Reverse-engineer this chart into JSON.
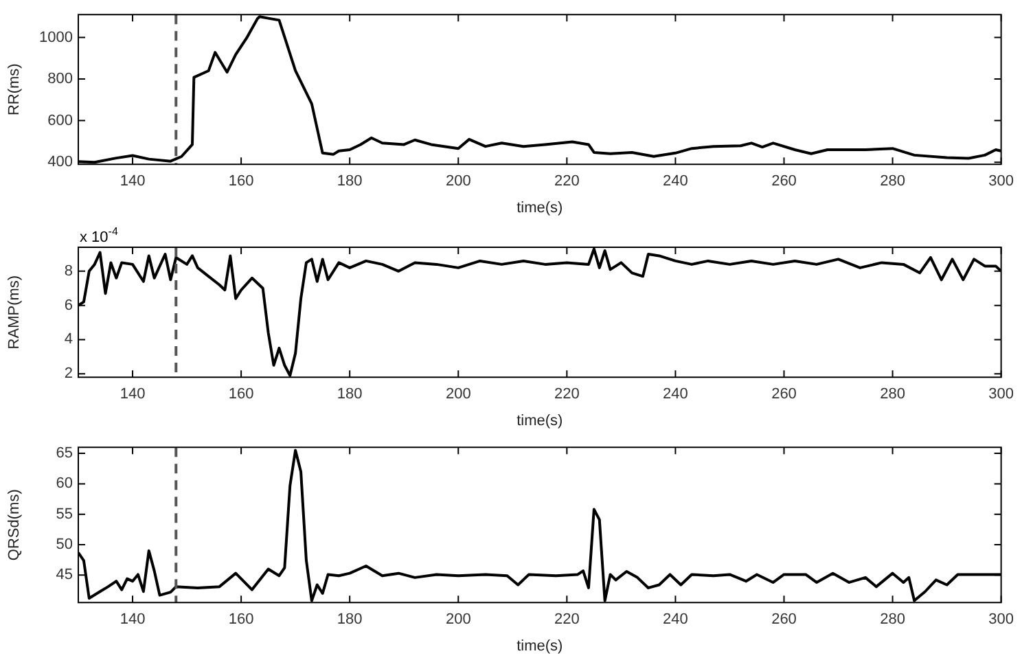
{
  "chart_data": [
    {
      "type": "line",
      "xlabel": "time(s)",
      "ylabel": "RR(ms)",
      "xlim": [
        130,
        300
      ],
      "ylim": [
        390,
        1110
      ],
      "xticks": [
        140,
        160,
        180,
        200,
        220,
        240,
        260,
        280,
        300
      ],
      "yticks": [
        400,
        600,
        800,
        1000
      ],
      "grid": false,
      "legend": false,
      "line_style": "solid",
      "marker": "none",
      "ref_lines": [
        {
          "axis": "x",
          "value": 148,
          "color": "#555555",
          "line_style": "dashed"
        }
      ],
      "series": [
        {
          "color": "#000000",
          "x": [
            130,
            133,
            137,
            140,
            143,
            147,
            149,
            151,
            151.3,
            154,
            155.2,
            157.4,
            159,
            161,
            163,
            163.4,
            165,
            167,
            170,
            173,
            175,
            177,
            178,
            180,
            182,
            184,
            186,
            190,
            192,
            195,
            200,
            202,
            205,
            208,
            212,
            216,
            221,
            224,
            225,
            228,
            232,
            236,
            240,
            243,
            247,
            252,
            254,
            256,
            258,
            262,
            265,
            268,
            275,
            280,
            284,
            290,
            294,
            297,
            299,
            300
          ],
          "values": [
            403,
            400,
            420,
            432,
            415,
            405,
            427,
            485,
            808,
            840,
            928,
            833,
            918,
            997,
            1090,
            1100,
            1092,
            1083,
            840,
            681,
            444,
            438,
            454,
            460,
            485,
            517,
            492,
            485,
            507,
            485,
            466,
            510,
            476,
            492,
            476,
            485,
            498,
            485,
            447,
            441,
            447,
            428,
            444,
            466,
            476,
            479,
            492,
            473,
            492,
            460,
            441,
            460,
            460,
            466,
            434,
            422,
            419,
            434,
            460,
            454
          ]
        }
      ]
    },
    {
      "type": "line",
      "xlabel": "time(s)",
      "ylabel": "RAMP(ms)",
      "annotations": [
        "x 10$^{-4}$"
      ],
      "xlim": [
        130,
        300
      ],
      "ylim": [
        1.8,
        9.4
      ],
      "xticks": [
        140,
        160,
        180,
        200,
        220,
        240,
        260,
        280,
        300
      ],
      "yticks": [
        2,
        4,
        6,
        8
      ],
      "grid": false,
      "legend": false,
      "line_style": "solid",
      "marker": "none",
      "ref_lines": [
        {
          "axis": "x",
          "value": 148,
          "color": "#555555",
          "line_style": "dashed"
        }
      ],
      "series": [
        {
          "color": "#000000",
          "x": [
            130,
            131,
            132,
            133,
            134,
            135,
            136,
            137,
            138,
            140,
            142,
            143,
            144,
            146,
            147,
            148,
            150,
            151,
            152,
            154,
            156,
            157,
            158,
            159,
            160,
            162,
            164,
            165,
            166,
            167,
            168,
            169,
            170,
            171,
            172,
            173,
            174,
            175,
            176,
            178,
            180,
            183,
            186,
            189,
            192,
            196,
            200,
            204,
            208,
            212,
            216,
            220,
            224,
            225,
            226,
            227,
            228,
            230,
            232,
            234,
            235,
            237,
            240,
            243,
            246,
            250,
            254,
            258,
            262,
            266,
            270,
            274,
            278,
            282,
            285,
            287,
            289,
            291,
            293,
            295,
            297,
            299,
            300
          ],
          "values": [
            6.0,
            6.2,
            8.0,
            8.4,
            9.1,
            6.7,
            8.5,
            7.6,
            8.5,
            8.4,
            7.4,
            8.9,
            7.6,
            9.0,
            7.5,
            8.8,
            8.4,
            8.9,
            8.2,
            7.7,
            7.2,
            6.9,
            8.9,
            6.4,
            6.9,
            7.6,
            7.0,
            4.4,
            2.5,
            3.5,
            2.5,
            1.9,
            3.2,
            6.4,
            8.5,
            8.7,
            7.4,
            8.7,
            7.5,
            8.5,
            8.2,
            8.6,
            8.4,
            8.0,
            8.5,
            8.4,
            8.2,
            8.6,
            8.4,
            8.6,
            8.4,
            8.5,
            8.4,
            9.3,
            8.2,
            9.2,
            8.1,
            8.5,
            7.9,
            7.7,
            9.0,
            8.9,
            8.6,
            8.4,
            8.6,
            8.4,
            8.6,
            8.4,
            8.6,
            8.4,
            8.7,
            8.2,
            8.5,
            8.4,
            7.9,
            8.8,
            7.5,
            8.7,
            7.5,
            8.7,
            8.3,
            8.3,
            8.0
          ]
        }
      ]
    },
    {
      "type": "line",
      "xlabel": "time(s)",
      "ylabel": "QRSd(ms)",
      "xlim": [
        130,
        300
      ],
      "ylim": [
        40.5,
        66
      ],
      "xticks": [
        140,
        160,
        180,
        200,
        220,
        240,
        260,
        280,
        300
      ],
      "yticks": [
        45,
        50,
        55,
        60,
        65
      ],
      "grid": false,
      "legend": false,
      "line_style": "solid",
      "marker": "none",
      "ref_lines": [
        {
          "axis": "x",
          "value": 148,
          "color": "#555555",
          "line_style": "dashed"
        }
      ],
      "series": [
        {
          "color": "#000000",
          "x": [
            130,
            131,
            132,
            134,
            135.5,
            137,
            138,
            139,
            140,
            141,
            142,
            143,
            144,
            145,
            147,
            148,
            152,
            156,
            159,
            162,
            165,
            167,
            168,
            169,
            170,
            171,
            172,
            173,
            174,
            175,
            176,
            178,
            180,
            183,
            186,
            189,
            192,
            196,
            200,
            205,
            209,
            211,
            213,
            218,
            222,
            223,
            224,
            225,
            226,
            227,
            228,
            229,
            231,
            233,
            235,
            237,
            239,
            241,
            243,
            247,
            250,
            253,
            255,
            258,
            260,
            264,
            266,
            269,
            272,
            275,
            277,
            280,
            282,
            283,
            284,
            286,
            288,
            290,
            292,
            295,
            300
          ],
          "values": [
            48.7,
            47.4,
            41.2,
            42.3,
            43.1,
            44.0,
            42.6,
            44.4,
            44.0,
            45.1,
            42.3,
            49.0,
            45.7,
            41.7,
            42.2,
            43.1,
            42.9,
            43.1,
            45.3,
            42.6,
            46.0,
            44.9,
            46.2,
            59.7,
            65.5,
            62.0,
            47.4,
            40.8,
            43.4,
            42.0,
            45.1,
            44.9,
            45.3,
            46.5,
            44.9,
            45.3,
            44.6,
            45.1,
            44.9,
            45.1,
            44.9,
            43.4,
            45.1,
            44.9,
            45.1,
            45.7,
            42.9,
            55.8,
            54.1,
            40.8,
            45.1,
            44.2,
            45.6,
            44.6,
            42.9,
            43.4,
            45.1,
            43.4,
            45.1,
            44.9,
            45.1,
            44.0,
            45.1,
            43.8,
            45.1,
            45.1,
            43.8,
            45.3,
            43.8,
            44.6,
            43.1,
            45.3,
            43.8,
            44.6,
            40.8,
            42.3,
            44.2,
            43.4,
            45.1,
            45.1,
            45.1
          ]
        }
      ]
    }
  ]
}
